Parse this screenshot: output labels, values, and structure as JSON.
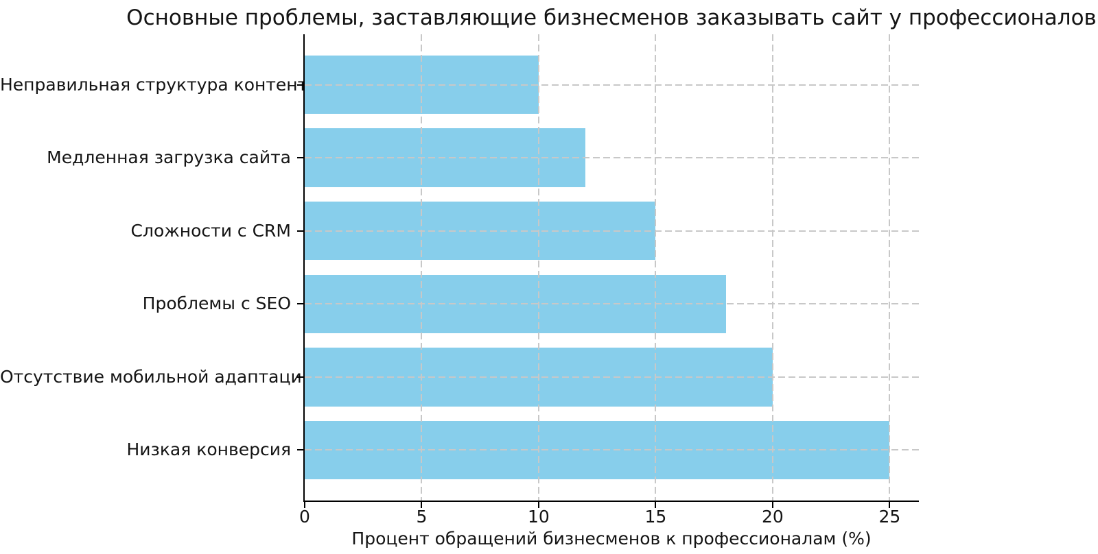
{
  "chart_data": {
    "type": "bar",
    "orientation": "horizontal",
    "title": "Основные проблемы, заставляющие бизнесменов заказывать сайт у профессионалов",
    "categories": [
      "Неправильная структура контента",
      "Медленная загрузка сайта",
      "Сложности с CRM",
      "Проблемы с SEO",
      "Отсутствие мобильной адаптации",
      "Низкая конверсия"
    ],
    "values": [
      10,
      12,
      15,
      18,
      20,
      25
    ],
    "xlabel": "Процент обращений бизнесменов к профессионалам (%)",
    "ylabel": "",
    "xlim": [
      0,
      26.25
    ],
    "xticks": [
      0,
      5,
      10,
      15,
      20,
      25
    ],
    "bar_color": "#87ceeb",
    "bar_thickness_fraction": 0.8,
    "grid": true,
    "grid_style": "dashed",
    "grid_color": "#c8c8c8",
    "axis_color": "#000000",
    "text_color": "#141414",
    "background_color": "#ffffff",
    "legend": "none"
  }
}
